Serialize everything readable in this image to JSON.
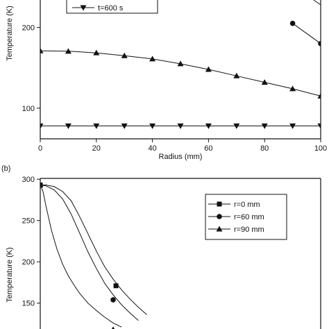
{
  "chart_data": [
    {
      "panel_label": "",
      "type": "line",
      "xlabel": "Radius (mm)",
      "ylabel": "Temperature (K)",
      "xlim": [
        0,
        100
      ],
      "ylim": [
        62,
        234
      ],
      "x_ticks": [
        "0",
        "20",
        "40",
        "60",
        "80",
        "100"
      ],
      "x_tick_values": [
        0,
        20,
        40,
        60,
        80,
        100
      ],
      "y_ticks": [
        "100",
        "200"
      ],
      "y_tick_values": [
        100,
        200
      ],
      "grid": false,
      "legend_position": "top-left",
      "legend": [
        {
          "label": "t=600 s",
          "marker": "triangle-down"
        }
      ],
      "series": [
        {
          "name": "",
          "marker": "circle",
          "x": [
            90,
            100
          ],
          "y": [
            205,
            180
          ]
        },
        {
          "name": "",
          "marker": "triangle-up",
          "x": [
            0,
            10,
            20,
            30,
            40,
            50,
            60,
            70,
            80,
            90,
            100
          ],
          "y": [
            171,
            170.5,
            168.5,
            165,
            161,
            155,
            148,
            140,
            132,
            124,
            115
          ]
        },
        {
          "name": "t=600 s",
          "marker": "triangle-down",
          "x": [
            0,
            10,
            20,
            30,
            40,
            50,
            60,
            70,
            80,
            90,
            100
          ],
          "y": [
            78,
            78,
            78,
            78,
            78,
            78,
            78,
            78,
            78,
            78,
            78
          ]
        },
        {
          "name": "",
          "marker": "none",
          "x": [
            97.5,
            100
          ],
          "y": [
            234,
            228
          ]
        }
      ]
    },
    {
      "panel_label": "(b)",
      "type": "line",
      "xlabel": "",
      "ylabel": "Temperature (K)",
      "xlim": [
        0,
        100
      ],
      "ylim": [
        117,
        301
      ],
      "y_ticks": [
        "300",
        "250",
        "200",
        "150"
      ],
      "y_tick_values": [
        300,
        250,
        200,
        150
      ],
      "grid": false,
      "legend_position": "top-right",
      "legend": [
        {
          "label": "r=0 mm",
          "marker": "square"
        },
        {
          "label": "r=60 mm",
          "marker": "circle"
        },
        {
          "label": "r=90 mm",
          "marker": "triangle-up"
        }
      ],
      "series": [
        {
          "name": "r=0 mm",
          "marker": "square",
          "x": [
            0,
            2,
            5,
            8,
            11,
            14,
            17,
            20,
            23,
            26,
            29,
            32,
            35,
            38
          ],
          "y": [
            293,
            293,
            291,
            285,
            274,
            255,
            234,
            213,
            194,
            179,
            166,
            155,
            145,
            136
          ],
          "marker_x": [
            0,
            27
          ],
          "marker_y": [
            293,
            171
          ]
        },
        {
          "name": "r=60 mm",
          "marker": "circle",
          "x": [
            0,
            2,
            5,
            8,
            11,
            14,
            17,
            20,
            23,
            26,
            29,
            32,
            35
          ],
          "y": [
            293,
            292,
            287,
            276,
            258,
            235,
            212,
            192,
            174,
            160,
            148,
            138,
            129
          ],
          "marker_x": [
            0,
            26
          ],
          "marker_y": [
            293,
            154
          ]
        },
        {
          "name": "r=90 mm",
          "marker": "triangle-up",
          "x": [
            0,
            1,
            2,
            4,
            6,
            8,
            10,
            12,
            14,
            17,
            20,
            23,
            26,
            29
          ],
          "y": [
            293,
            285,
            268,
            238,
            215,
            197,
            183,
            172,
            162,
            150,
            141,
            133,
            126,
            121
          ],
          "marker_x": [
            0,
            26
          ],
          "marker_y": [
            293,
            118
          ]
        }
      ]
    }
  ]
}
